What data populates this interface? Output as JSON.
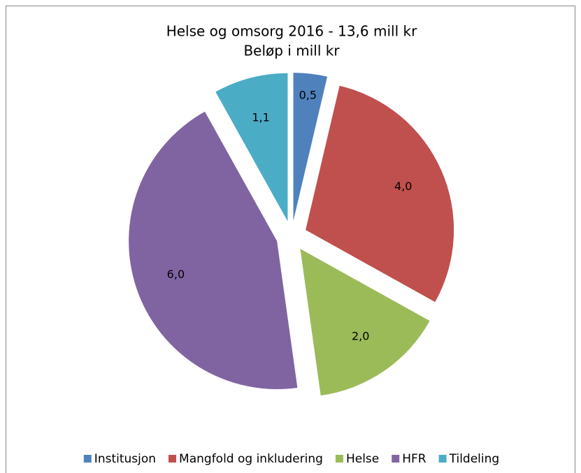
{
  "chart_data": {
    "type": "pie",
    "title": "Helse og omsorg 2016 - 13,6 mill kr",
    "subtitle": "Beløp i mill kr",
    "categories": [
      "Institusjon",
      "Mangfold og inkludering",
      "Helse",
      "HFR",
      "Tildeling"
    ],
    "values": [
      0.5,
      4.0,
      2.0,
      6.0,
      1.1
    ],
    "value_labels": [
      "0,5",
      "4,0",
      "2,0",
      "6,0",
      "1,1"
    ],
    "colors": [
      "#4f81bd",
      "#c0504d",
      "#9bbb59",
      "#8064a2",
      "#4bacc6"
    ],
    "legend": "bottom"
  }
}
